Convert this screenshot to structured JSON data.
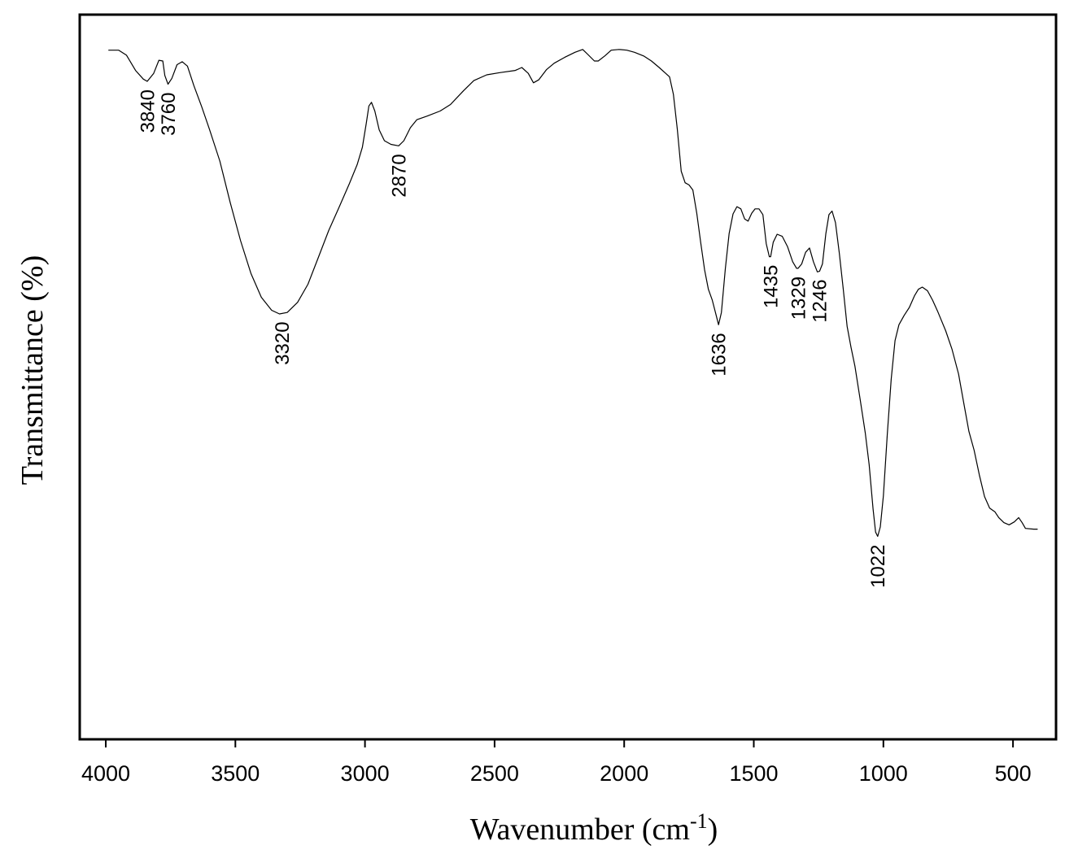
{
  "chart_data": {
    "type": "line",
    "title": "",
    "xlabel": "Wavenumber (cm",
    "xlabel_sup": "-1",
    "xlabel_suffix": ")",
    "ylabel": "Transmittance (%)",
    "xlim": [
      4100,
      350
    ],
    "x_reversed": true,
    "ylim": [
      0,
      100
    ],
    "y_tick_labels_shown": false,
    "grid": false,
    "legend": "none",
    "x_ticks": [
      4000,
      3500,
      3000,
      2500,
      2000,
      1500,
      1000,
      500
    ],
    "series": [
      {
        "color": "#000000",
        "points": [
          [
            3990,
            95.1
          ],
          [
            3950,
            95.1
          ],
          [
            3920,
            94.4
          ],
          [
            3885,
            92.3
          ],
          [
            3855,
            91.1
          ],
          [
            3840,
            90.8
          ],
          [
            3815,
            91.9
          ],
          [
            3795,
            93.7
          ],
          [
            3780,
            93.6
          ],
          [
            3772,
            91.6
          ],
          [
            3760,
            90.4
          ],
          [
            3745,
            91.2
          ],
          [
            3725,
            93.1
          ],
          [
            3705,
            93.5
          ],
          [
            3685,
            92.9
          ],
          [
            3660,
            90.2
          ],
          [
            3630,
            87.3
          ],
          [
            3600,
            84.2
          ],
          [
            3560,
            79.8
          ],
          [
            3520,
            74.1
          ],
          [
            3480,
            68.8
          ],
          [
            3440,
            64.3
          ],
          [
            3400,
            61.0
          ],
          [
            3360,
            59.2
          ],
          [
            3330,
            58.7
          ],
          [
            3300,
            58.9
          ],
          [
            3260,
            60.3
          ],
          [
            3220,
            62.8
          ],
          [
            3180,
            66.5
          ],
          [
            3140,
            70.2
          ],
          [
            3100,
            73.4
          ],
          [
            3060,
            76.7
          ],
          [
            3030,
            79.3
          ],
          [
            3010,
            81.7
          ],
          [
            2995,
            85.0
          ],
          [
            2985,
            87.4
          ],
          [
            2975,
            87.9
          ],
          [
            2962,
            86.7
          ],
          [
            2945,
            84.1
          ],
          [
            2925,
            82.6
          ],
          [
            2900,
            82.1
          ],
          [
            2870,
            81.9
          ],
          [
            2850,
            82.6
          ],
          [
            2825,
            84.4
          ],
          [
            2800,
            85.5
          ],
          [
            2760,
            86.0
          ],
          [
            2710,
            86.7
          ],
          [
            2670,
            87.6
          ],
          [
            2620,
            89.5
          ],
          [
            2580,
            90.9
          ],
          [
            2530,
            91.7
          ],
          [
            2480,
            92.0
          ],
          [
            2420,
            92.3
          ],
          [
            2395,
            92.7
          ],
          [
            2370,
            91.9
          ],
          [
            2350,
            90.6
          ],
          [
            2330,
            91.0
          ],
          [
            2300,
            92.4
          ],
          [
            2270,
            93.3
          ],
          [
            2230,
            94.1
          ],
          [
            2190,
            94.8
          ],
          [
            2160,
            95.2
          ],
          [
            2140,
            94.5
          ],
          [
            2115,
            93.6
          ],
          [
            2100,
            93.6
          ],
          [
            2075,
            94.3
          ],
          [
            2050,
            95.1
          ],
          [
            2020,
            95.2
          ],
          [
            1990,
            95.1
          ],
          [
            1960,
            94.8
          ],
          [
            1925,
            94.3
          ],
          [
            1895,
            93.6
          ],
          [
            1865,
            92.7
          ],
          [
            1840,
            91.9
          ],
          [
            1825,
            91.4
          ],
          [
            1810,
            89.0
          ],
          [
            1795,
            84.2
          ],
          [
            1780,
            78.4
          ],
          [
            1765,
            76.8
          ],
          [
            1750,
            76.5
          ],
          [
            1735,
            75.8
          ],
          [
            1720,
            72.6
          ],
          [
            1705,
            68.6
          ],
          [
            1690,
            64.8
          ],
          [
            1675,
            62.1
          ],
          [
            1660,
            60.6
          ],
          [
            1645,
            58.5
          ],
          [
            1636,
            57.2
          ],
          [
            1625,
            58.9
          ],
          [
            1610,
            64.9
          ],
          [
            1595,
            69.8
          ],
          [
            1580,
            72.5
          ],
          [
            1565,
            73.5
          ],
          [
            1550,
            73.2
          ],
          [
            1535,
            71.8
          ],
          [
            1522,
            71.5
          ],
          [
            1508,
            72.6
          ],
          [
            1495,
            73.2
          ],
          [
            1480,
            73.2
          ],
          [
            1465,
            72.4
          ],
          [
            1452,
            68.4
          ],
          [
            1440,
            66.6
          ],
          [
            1435,
            66.6
          ],
          [
            1425,
            68.6
          ],
          [
            1410,
            69.7
          ],
          [
            1390,
            69.4
          ],
          [
            1370,
            68.0
          ],
          [
            1350,
            65.9
          ],
          [
            1335,
            65.0
          ],
          [
            1329,
            65.0
          ],
          [
            1315,
            65.6
          ],
          [
            1300,
            67.2
          ],
          [
            1285,
            67.8
          ],
          [
            1270,
            65.9
          ],
          [
            1255,
            64.5
          ],
          [
            1246,
            64.6
          ],
          [
            1235,
            65.6
          ],
          [
            1222,
            69.8
          ],
          [
            1210,
            72.4
          ],
          [
            1198,
            72.9
          ],
          [
            1185,
            71.3
          ],
          [
            1170,
            67.1
          ],
          [
            1155,
            62.2
          ],
          [
            1140,
            57.0
          ],
          [
            1125,
            54.1
          ],
          [
            1110,
            51.5
          ],
          [
            1090,
            47.0
          ],
          [
            1070,
            42.3
          ],
          [
            1055,
            37.9
          ],
          [
            1040,
            31.8
          ],
          [
            1030,
            28.6
          ],
          [
            1022,
            28.0
          ],
          [
            1012,
            29.3
          ],
          [
            1000,
            33.6
          ],
          [
            985,
            42.1
          ],
          [
            970,
            49.7
          ],
          [
            955,
            55.0
          ],
          [
            940,
            57.2
          ],
          [
            920,
            58.5
          ],
          [
            900,
            59.6
          ],
          [
            880,
            61.2
          ],
          [
            865,
            62.1
          ],
          [
            850,
            62.4
          ],
          [
            830,
            61.9
          ],
          [
            810,
            60.6
          ],
          [
            790,
            59.0
          ],
          [
            760,
            56.4
          ],
          [
            735,
            53.8
          ],
          [
            710,
            50.4
          ],
          [
            690,
            46.4
          ],
          [
            670,
            42.5
          ],
          [
            650,
            39.9
          ],
          [
            630,
            36.5
          ],
          [
            610,
            33.5
          ],
          [
            590,
            31.9
          ],
          [
            570,
            31.4
          ],
          [
            555,
            30.6
          ],
          [
            535,
            29.9
          ],
          [
            515,
            29.6
          ],
          [
            495,
            30.0
          ],
          [
            478,
            30.6
          ],
          [
            465,
            29.9
          ],
          [
            452,
            29.1
          ],
          [
            420,
            29.0
          ],
          [
            405,
            29.0
          ]
        ]
      }
    ],
    "annotations": [
      {
        "text": "3840",
        "x": 3840
      },
      {
        "text": "3760",
        "x": 3760
      },
      {
        "text": "3320",
        "x": 3320
      },
      {
        "text": "2870",
        "x": 2870
      },
      {
        "text": "1636",
        "x": 1636
      },
      {
        "text": "1435",
        "x": 1435
      },
      {
        "text": "1329",
        "x": 1329
      },
      {
        "text": "1246",
        "x": 1246
      },
      {
        "text": "1022",
        "x": 1022
      }
    ]
  }
}
